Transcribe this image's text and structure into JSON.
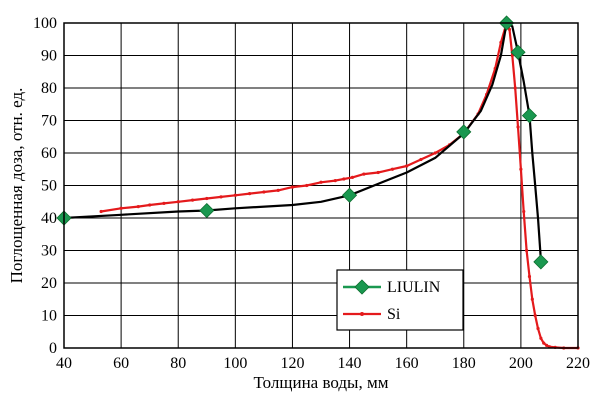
{
  "chart_data": {
    "type": "line",
    "title": "",
    "xlabel": "Толщина воды, мм",
    "ylabel": "Поглощенная доза, отн. ед.",
    "xlim": [
      40,
      220
    ],
    "ylim": [
      0,
      100
    ],
    "xticks": [
      40,
      60,
      80,
      100,
      120,
      140,
      160,
      180,
      200,
      220
    ],
    "yticks": [
      0,
      10,
      20,
      30,
      40,
      50,
      60,
      70,
      80,
      90,
      100
    ],
    "grid": true,
    "legend_position": "bottom-center",
    "series": [
      {
        "name": "LIULIN",
        "color": "#000000",
        "marker_color": "#1a9850",
        "marker": "diamond",
        "x": [
          40,
          60,
          80,
          90,
          100,
          120,
          130,
          140,
          150,
          160,
          170,
          180,
          186,
          190,
          193,
          195,
          197,
          199,
          201,
          203,
          204,
          205,
          206,
          207
        ],
        "y": [
          40,
          41,
          42,
          42.3,
          43,
          44,
          45,
          47,
          50.5,
          54,
          58.5,
          66,
          73,
          81,
          90,
          100,
          99,
          91,
          82,
          71.5,
          60,
          50,
          40,
          27
        ],
        "marker_points": [
          [
            40,
            40
          ],
          [
            90,
            42.3
          ],
          [
            140,
            47
          ],
          [
            180,
            66.5
          ],
          [
            195,
            100
          ],
          [
            199,
            91
          ],
          [
            203,
            71.5
          ],
          [
            207,
            26.5
          ]
        ]
      },
      {
        "name": "Si",
        "color": "#e41a1c",
        "marker": "dot",
        "x": [
          53,
          60,
          66,
          70,
          75,
          80,
          85,
          90,
          95,
          100,
          105,
          110,
          115,
          120,
          125,
          130,
          135,
          138,
          141,
          145,
          150,
          155,
          160,
          165,
          170,
          175,
          180,
          185,
          188,
          191,
          193,
          195,
          196,
          197,
          198,
          199,
          200,
          201,
          202,
          203,
          204,
          205,
          206,
          207,
          208,
          209,
          210,
          212,
          215,
          220
        ],
        "y": [
          42,
          43,
          43.5,
          44,
          44.5,
          45,
          45.5,
          46,
          46.5,
          47,
          47.5,
          48,
          48.5,
          49.5,
          50,
          51,
          51.5,
          52,
          52.5,
          53.5,
          54,
          55,
          56,
          58,
          60,
          62.5,
          66,
          72,
          78,
          86,
          94,
          100,
          98,
          90,
          80,
          68,
          55,
          42,
          30,
          22,
          15,
          10,
          6,
          3,
          1.5,
          0.8,
          0.4,
          0.2,
          0,
          0
        ]
      }
    ]
  }
}
